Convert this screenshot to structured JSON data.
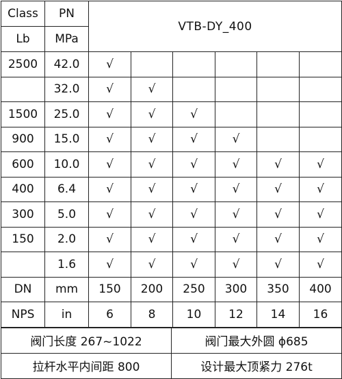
{
  "header": {
    "class_label": "Class",
    "pn_label": "PN",
    "lb_label": "Lb",
    "mpa_label": "MPa",
    "title": "VTB-DY_400"
  },
  "rows": [
    {
      "lb": "2500",
      "mpa": "42.0",
      "checks": [
        "√",
        "",
        "",
        "",
        "",
        ""
      ]
    },
    {
      "lb": "",
      "mpa": "32.0",
      "checks": [
        "√",
        "√",
        "",
        "",
        "",
        ""
      ]
    },
    {
      "lb": "1500",
      "mpa": "25.0",
      "checks": [
        "√",
        "√",
        "√",
        "",
        "",
        ""
      ]
    },
    {
      "lb": "900",
      "mpa": "15.0",
      "checks": [
        "√",
        "√",
        "√",
        "√",
        "",
        ""
      ]
    },
    {
      "lb": "600",
      "mpa": "10.0",
      "checks": [
        "√",
        "√",
        "√",
        "√",
        "√",
        "√"
      ]
    },
    {
      "lb": "400",
      "mpa": "6.4",
      "checks": [
        "√",
        "√",
        "√",
        "√",
        "√",
        "√"
      ]
    },
    {
      "lb": "300",
      "mpa": "5.0",
      "checks": [
        "√",
        "√",
        "√",
        "√",
        "√",
        "√"
      ]
    },
    {
      "lb": "150",
      "mpa": "2.0",
      "checks": [
        "√",
        "√",
        "√",
        "√",
        "√",
        "√"
      ]
    },
    {
      "lb": "",
      "mpa": "1.6",
      "checks": [
        "√",
        "√",
        "√",
        "√",
        "√",
        "√"
      ]
    }
  ],
  "dn_row": {
    "label": "DN",
    "unit": "mm",
    "values": [
      "150",
      "200",
      "250",
      "300",
      "350",
      "400"
    ]
  },
  "nps_row": {
    "label": "NPS",
    "unit": "in",
    "values": [
      "6",
      "8",
      "10",
      "12",
      "14",
      "16"
    ]
  },
  "footer": {
    "valve_length": "阀门长度 267~1022",
    "valve_max_od": "阀门最大外圆 ϕ685",
    "tie_rod_spacing": "拉杆水平内间距 800",
    "max_design_force": "设计最大顶紧力 276t"
  }
}
